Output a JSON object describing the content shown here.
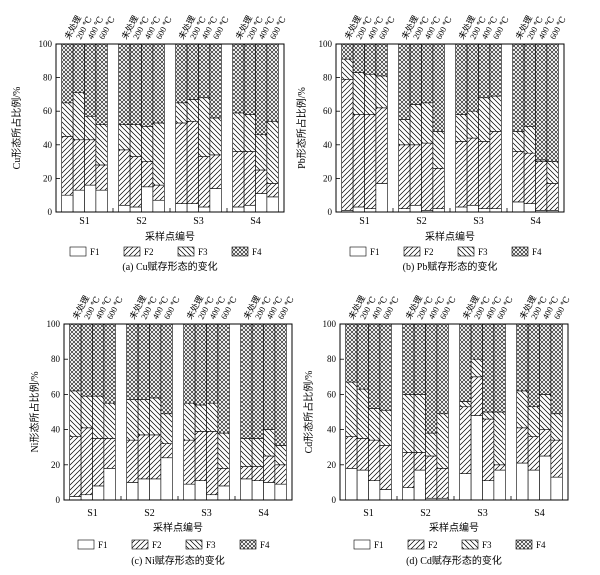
{
  "figure": {
    "legend_labels": [
      "F1",
      "F2",
      "F3",
      "F4"
    ],
    "pattern_names": [
      "blank",
      "diag-fwd",
      "diag-back",
      "crosshatch"
    ]
  },
  "chart_data": [
    {
      "type": "bar",
      "stacked": true,
      "title": "(a) Cu赋存形态的变化",
      "xlabel": "采样点编号",
      "ylabel": "Cu形态所占比例/%",
      "ylim": [
        0,
        100
      ],
      "yticks": [
        0,
        20,
        40,
        60,
        80,
        100
      ],
      "show_ytick_labels": true,
      "categories": [
        "S1",
        "S2",
        "S3",
        "S4"
      ],
      "treatments": [
        "未处理",
        "200 ℃",
        "400 ℃",
        "600 ℃"
      ],
      "series": [
        {
          "name": "F1",
          "values": [
            [
              10,
              13,
              16,
              13
            ],
            [
              4,
              3,
              15,
              7
            ],
            [
              5,
              5,
              3,
              14
            ],
            [
              3,
              4,
              11,
              9
            ]
          ]
        },
        {
          "name": "F2",
          "values": [
            [
              35,
              30,
              27,
              15
            ],
            [
              33,
              30,
              15,
              9
            ],
            [
              48,
              49,
              30,
              20
            ],
            [
              33,
              32,
              14,
              8
            ]
          ]
        },
        {
          "name": "F3",
          "values": [
            [
              20,
              28,
              14,
              24
            ],
            [
              15,
              19,
              21,
              37
            ],
            [
              12,
              13,
              35,
              22
            ],
            [
              23,
              22,
              21,
              37
            ]
          ]
        },
        {
          "name": "F4",
          "values": [
            [
              35,
              29,
              43,
              48
            ],
            [
              48,
              48,
              49,
              47
            ],
            [
              35,
              33,
              32,
              44
            ],
            [
              41,
              42,
              54,
              46
            ]
          ]
        }
      ]
    },
    {
      "type": "bar",
      "stacked": true,
      "title": "(b) Pb赋存形态的变化",
      "xlabel": "采样点编号",
      "ylabel": "Pb形态所占比例/%",
      "ylim": [
        0,
        100
      ],
      "yticks": [
        0,
        20,
        40,
        60,
        80,
        100
      ],
      "show_ytick_labels": true,
      "categories": [
        "S1",
        "S2",
        "S3",
        "S4"
      ],
      "treatments": [
        "未处理",
        "200 ℃",
        "400 ℃",
        "600 ℃"
      ],
      "series": [
        {
          "name": "F1",
          "values": [
            [
              1,
              3,
              2,
              17
            ],
            [
              2,
              4,
              1,
              2
            ],
            [
              3,
              4,
              2,
              2
            ],
            [
              6,
              5,
              1,
              1
            ]
          ]
        },
        {
          "name": "F2",
          "values": [
            [
              78,
              55,
              56,
              45
            ],
            [
              38,
              36,
              40,
              24
            ],
            [
              39,
              40,
              40,
              46
            ],
            [
              30,
              30,
              29,
              16
            ]
          ]
        },
        {
          "name": "F3",
          "values": [
            [
              12,
              25,
              24,
              19
            ],
            [
              15,
              24,
              24,
              22
            ],
            [
              16,
              16,
              26,
              21
            ],
            [
              12,
              16,
              1,
              13
            ]
          ]
        },
        {
          "name": "F4",
          "values": [
            [
              9,
              17,
              18,
              19
            ],
            [
              45,
              36,
              35,
              52
            ],
            [
              42,
              40,
              32,
              31
            ],
            [
              52,
              49,
              69,
              70
            ]
          ]
        }
      ]
    },
    {
      "type": "bar",
      "stacked": true,
      "title": "(c) Ni赋存形态的变化",
      "xlabel": "采样点编号",
      "ylabel": "Ni形态所占比例/%",
      "ylim": [
        0,
        100
      ],
      "yticks": [
        0,
        20,
        40,
        60,
        80,
        100
      ],
      "show_ytick_labels": true,
      "categories": [
        "S1",
        "S2",
        "S3",
        "S4"
      ],
      "treatments": [
        "未处理",
        "200 ℃",
        "400 ℃",
        "600 ℃"
      ],
      "series": [
        {
          "name": "F1",
          "values": [
            [
              2,
              3,
              8,
              18
            ],
            [
              10,
              12,
              12,
              24
            ],
            [
              9,
              11,
              3,
              8
            ],
            [
              12,
              11,
              10,
              9
            ]
          ]
        },
        {
          "name": "F2",
          "values": [
            [
              34,
              38,
              27,
              17
            ],
            [
              24,
              25,
              25,
              8
            ],
            [
              25,
              28,
              36,
              10
            ],
            [
              7,
              8,
              15,
              11
            ]
          ]
        },
        {
          "name": "F3",
          "values": [
            [
              26,
              18,
              24,
              20
            ],
            [
              23,
              20,
              21,
              17
            ],
            [
              21,
              15,
              16,
              20
            ],
            [
              16,
              16,
              15,
              11
            ]
          ]
        },
        {
          "name": "F4",
          "values": [
            [
              38,
              41,
              41,
              45
            ],
            [
              43,
              43,
              42,
              51
            ],
            [
              45,
              46,
              45,
              62
            ],
            [
              65,
              65,
              60,
              69
            ]
          ]
        }
      ]
    },
    {
      "type": "bar",
      "stacked": true,
      "title": "(d) Cd赋存形态的变化",
      "xlabel": "采样点编号",
      "ylabel": "Cd形态所占比例/%",
      "ylim": [
        0,
        100
      ],
      "yticks": [
        0,
        20,
        40,
        60,
        80,
        100
      ],
      "show_ytick_labels": true,
      "categories": [
        "S1",
        "S2",
        "S3",
        "S4"
      ],
      "treatments": [
        "未处理",
        "200 ℃",
        "400 ℃",
        "600 ℃"
      ],
      "series": [
        {
          "name": "F1",
          "values": [
            [
              18,
              17,
              11,
              6
            ],
            [
              7,
              17,
              1,
              1
            ],
            [
              15,
              48,
              11,
              17
            ],
            [
              21,
              17,
              25,
              13
            ]
          ]
        },
        {
          "name": "F2",
          "values": [
            [
              18,
              18,
              23,
              25
            ],
            [
              20,
              10,
              24,
              17
            ],
            [
              38,
              22,
              35,
              3
            ],
            [
              20,
              19,
              15,
              21
            ]
          ]
        },
        {
          "name": "F3",
          "values": [
            [
              31,
              28,
              18,
              20
            ],
            [
              33,
              33,
              13,
              31
            ],
            [
              3,
              10,
              4,
              30
            ],
            [
              21,
              17,
              20,
              15
            ]
          ]
        },
        {
          "name": "F4",
          "values": [
            [
              33,
              37,
              48,
              49
            ],
            [
              40,
              40,
              62,
              51
            ],
            [
              44,
              20,
              50,
              50
            ],
            [
              38,
              47,
              40,
              51
            ]
          ]
        }
      ]
    }
  ]
}
